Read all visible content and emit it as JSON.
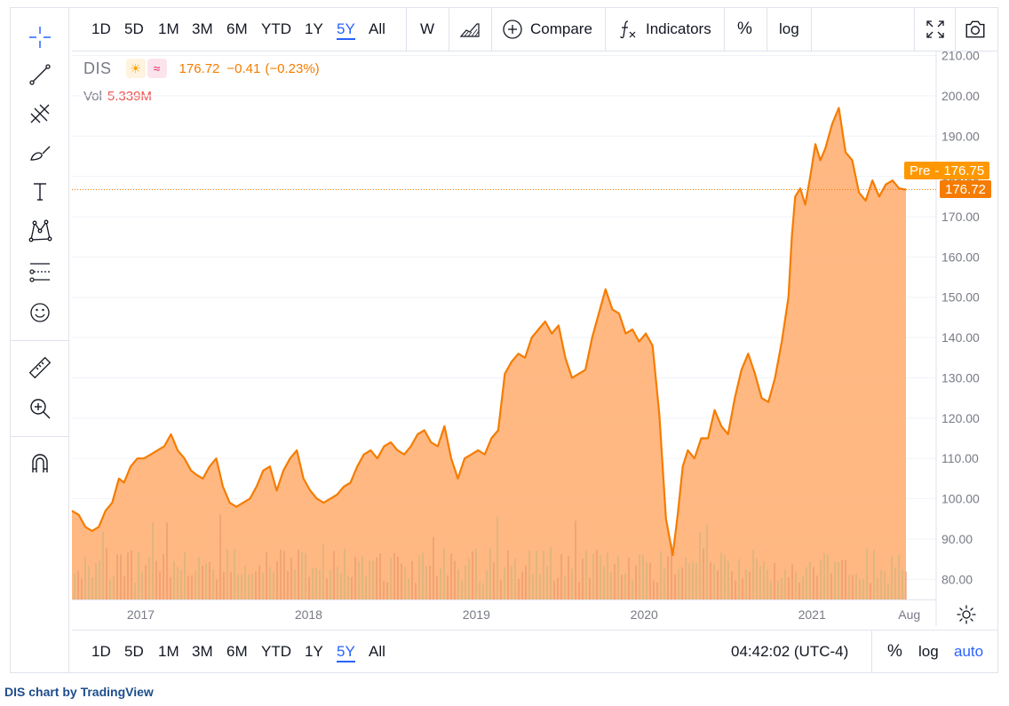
{
  "toolbar": {
    "tools": [
      {
        "icon": "crosshair-icon"
      },
      {
        "icon": "trend-line-icon"
      },
      {
        "icon": "fib-icon"
      },
      {
        "icon": "brush-icon"
      },
      {
        "icon": "text-icon"
      },
      {
        "icon": "pattern-icon"
      },
      {
        "icon": "forecast-icon"
      },
      {
        "icon": "emoji-icon"
      },
      {
        "icon": "ruler-icon"
      },
      {
        "icon": "zoom-in-icon"
      },
      {
        "icon": "magnet-icon"
      }
    ]
  },
  "topbar": {
    "ranges": [
      "1D",
      "5D",
      "1M",
      "3M",
      "6M",
      "YTD",
      "1Y",
      "5Y",
      "All"
    ],
    "active_range": "5Y",
    "interval": "W",
    "compare_label": "Compare",
    "indicators_label": "Indicators",
    "percent_label": "%",
    "log_label": "log"
  },
  "bottombar": {
    "ranges": [
      "1D",
      "5D",
      "1M",
      "3M",
      "6M",
      "YTD",
      "1Y",
      "5Y",
      "All"
    ],
    "active_range": "5Y",
    "time": "04:42:02 (UTC-4)",
    "percent_label": "%",
    "log_label": "log",
    "auto_label": "auto"
  },
  "legend": {
    "symbol": "DIS",
    "price": "176.72",
    "change": "−0.41",
    "change_pct": "(−0.23%)",
    "vol_label": "Vol",
    "vol_value": "5.339M"
  },
  "tags": {
    "pre_label": "Pre",
    "pre_value": "176.75",
    "last_value": "176.72"
  },
  "footer": {
    "text": "DIS chart by TradingView"
  },
  "colors": {
    "line": "#f57c00",
    "fill": "#ffb074",
    "accent": "#2962ff",
    "pre_tag": "#ff9800",
    "last_tag": "#f57c00"
  },
  "chart_data": {
    "type": "area",
    "symbol": "DIS",
    "y_ticks": [
      80,
      90,
      100,
      110,
      120,
      130,
      140,
      150,
      160,
      170,
      180,
      190,
      200,
      210
    ],
    "ylim": [
      75,
      211
    ],
    "y_tick_format": "0.00",
    "x_ticks": [
      "2017",
      "2018",
      "2019",
      "2020",
      "2021",
      "Aug"
    ],
    "x_tick_values": [
      2017.0,
      2018.0,
      2019.0,
      2020.0,
      2021.0,
      2021.58
    ],
    "xlim": [
      2016.59,
      2021.74
    ],
    "series": [
      {
        "name": "DIS",
        "x": [
          2016.59,
          2016.63,
          2016.67,
          2016.71,
          2016.75,
          2016.79,
          2016.83,
          2016.87,
          2016.9,
          2016.94,
          2016.98,
          2017.02,
          2017.06,
          2017.1,
          2017.14,
          2017.18,
          2017.22,
          2017.26,
          2017.3,
          2017.33,
          2017.37,
          2017.41,
          2017.45,
          2017.49,
          2017.53,
          2017.57,
          2017.61,
          2017.65,
          2017.69,
          2017.73,
          2017.77,
          2017.81,
          2017.85,
          2017.89,
          2017.93,
          2017.97,
          2018.01,
          2018.05,
          2018.09,
          2018.13,
          2018.17,
          2018.21,
          2018.25,
          2018.29,
          2018.33,
          2018.37,
          2018.41,
          2018.45,
          2018.49,
          2018.53,
          2018.57,
          2018.61,
          2018.65,
          2018.69,
          2018.73,
          2018.77,
          2018.81,
          2018.85,
          2018.89,
          2018.93,
          2018.97,
          2019.01,
          2019.05,
          2019.09,
          2019.13,
          2019.17,
          2019.21,
          2019.25,
          2019.29,
          2019.33,
          2019.37,
          2019.41,
          2019.45,
          2019.49,
          2019.53,
          2019.57,
          2019.61,
          2019.65,
          2019.69,
          2019.73,
          2019.77,
          2019.81,
          2019.85,
          2019.89,
          2019.93,
          2019.97,
          2020.01,
          2020.05,
          2020.09,
          2020.13,
          2020.17,
          2020.2,
          2020.23,
          2020.26,
          2020.3,
          2020.34,
          2020.38,
          2020.42,
          2020.46,
          2020.5,
          2020.54,
          2020.58,
          2020.62,
          2020.66,
          2020.7,
          2020.74,
          2020.78,
          2020.82,
          2020.86,
          2020.88,
          2020.9,
          2020.93,
          2020.96,
          2020.99,
          2021.02,
          2021.05,
          2021.08,
          2021.12,
          2021.16,
          2021.2,
          2021.24,
          2021.28,
          2021.32,
          2021.36,
          2021.4,
          2021.44,
          2021.48,
          2021.52,
          2021.56
        ],
        "y": [
          97,
          96,
          93,
          92,
          93,
          97,
          99,
          105,
          104,
          108,
          110,
          110,
          111,
          112,
          113,
          116,
          112,
          110,
          107,
          106,
          105,
          108,
          110,
          103,
          99,
          98,
          99,
          100,
          103,
          107,
          108,
          102,
          107,
          110,
          112,
          105,
          102,
          100,
          99,
          100,
          101,
          103,
          104,
          108,
          111,
          112,
          110,
          113,
          114,
          112,
          111,
          113,
          116,
          117,
          114,
          113,
          118,
          110,
          105,
          110,
          111,
          112,
          111,
          115,
          117,
          131,
          134,
          136,
          135,
          140,
          142,
          144,
          141,
          143,
          135,
          130,
          131,
          132,
          140,
          146,
          152,
          147,
          146,
          141,
          142,
          139,
          141,
          138,
          121,
          95,
          86,
          96,
          108,
          112,
          110,
          115,
          115,
          122,
          118,
          116,
          125,
          132,
          136,
          131,
          125,
          124,
          130,
          139,
          150,
          165,
          175,
          177,
          173,
          180,
          188,
          184,
          187,
          193,
          197,
          186,
          184,
          176,
          174,
          179,
          175,
          178,
          179,
          177,
          176.72
        ]
      }
    ],
    "volume": {
      "name": "Vol",
      "last": "5.339M"
    }
  }
}
